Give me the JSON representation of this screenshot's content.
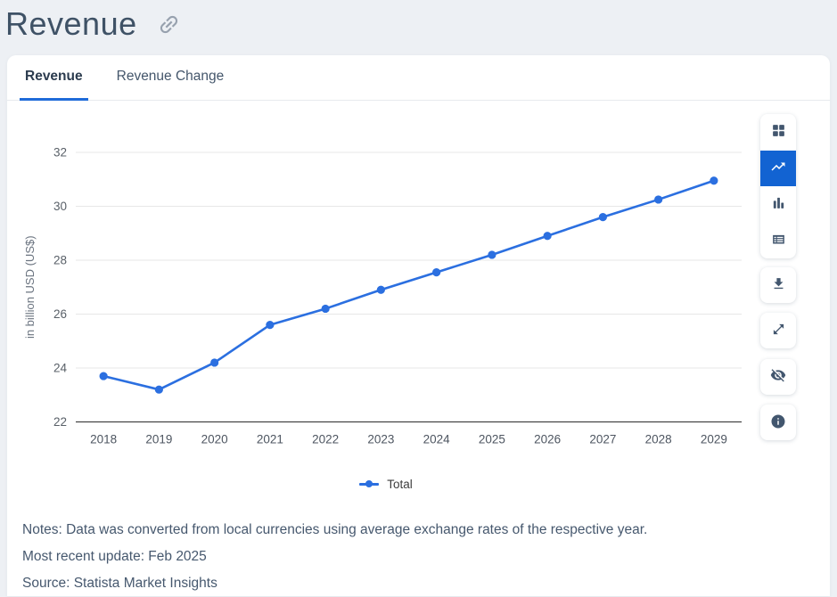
{
  "page": {
    "title": "Revenue"
  },
  "tabs": [
    {
      "label": "Revenue",
      "active": true
    },
    {
      "label": "Revenue Change",
      "active": false
    }
  ],
  "chart_data": {
    "type": "line",
    "ylabel": "in billion USD (US$)",
    "x": [
      "2018",
      "2019",
      "2020",
      "2021",
      "2022",
      "2023",
      "2024",
      "2025",
      "2026",
      "2027",
      "2028",
      "2029"
    ],
    "series": [
      {
        "name": "Total",
        "color": "#2b6fe0",
        "values": [
          23.7,
          23.2,
          24.2,
          25.6,
          26.2,
          26.9,
          27.55,
          28.2,
          28.9,
          29.6,
          30.25,
          30.95
        ]
      }
    ],
    "ylim": [
      22,
      32
    ],
    "yticks": [
      22,
      24,
      26,
      28,
      30,
      32
    ],
    "grid": true,
    "legend_position": "bottom"
  },
  "toolbar": {
    "chart_types": [
      {
        "icon": "grid-view-icon",
        "active": false
      },
      {
        "icon": "line-chart-icon",
        "active": true
      },
      {
        "icon": "bar-chart-icon",
        "active": false
      },
      {
        "icon": "table-view-icon",
        "active": false
      }
    ],
    "actions": [
      {
        "icon": "download-icon"
      },
      {
        "icon": "expand-icon"
      },
      {
        "icon": "hide-icon"
      },
      {
        "icon": "info-icon"
      }
    ]
  },
  "footer": {
    "notes": "Notes: Data was converted from local currencies using average exchange rates of the respective year.",
    "update": "Most recent update: Feb 2025",
    "source": "Source: Statista Market Insights"
  },
  "colors": {
    "accent_blue": "#1f6bd9",
    "line_blue": "#2b6fe0",
    "active_button_blue": "#1263d2",
    "grid_line": "#e7e7e7",
    "axis_line": "#454545",
    "tick_text": "#596068",
    "note_text": "#46586e",
    "title_text": "#3f5266",
    "page_bg": "#edf0f4"
  }
}
